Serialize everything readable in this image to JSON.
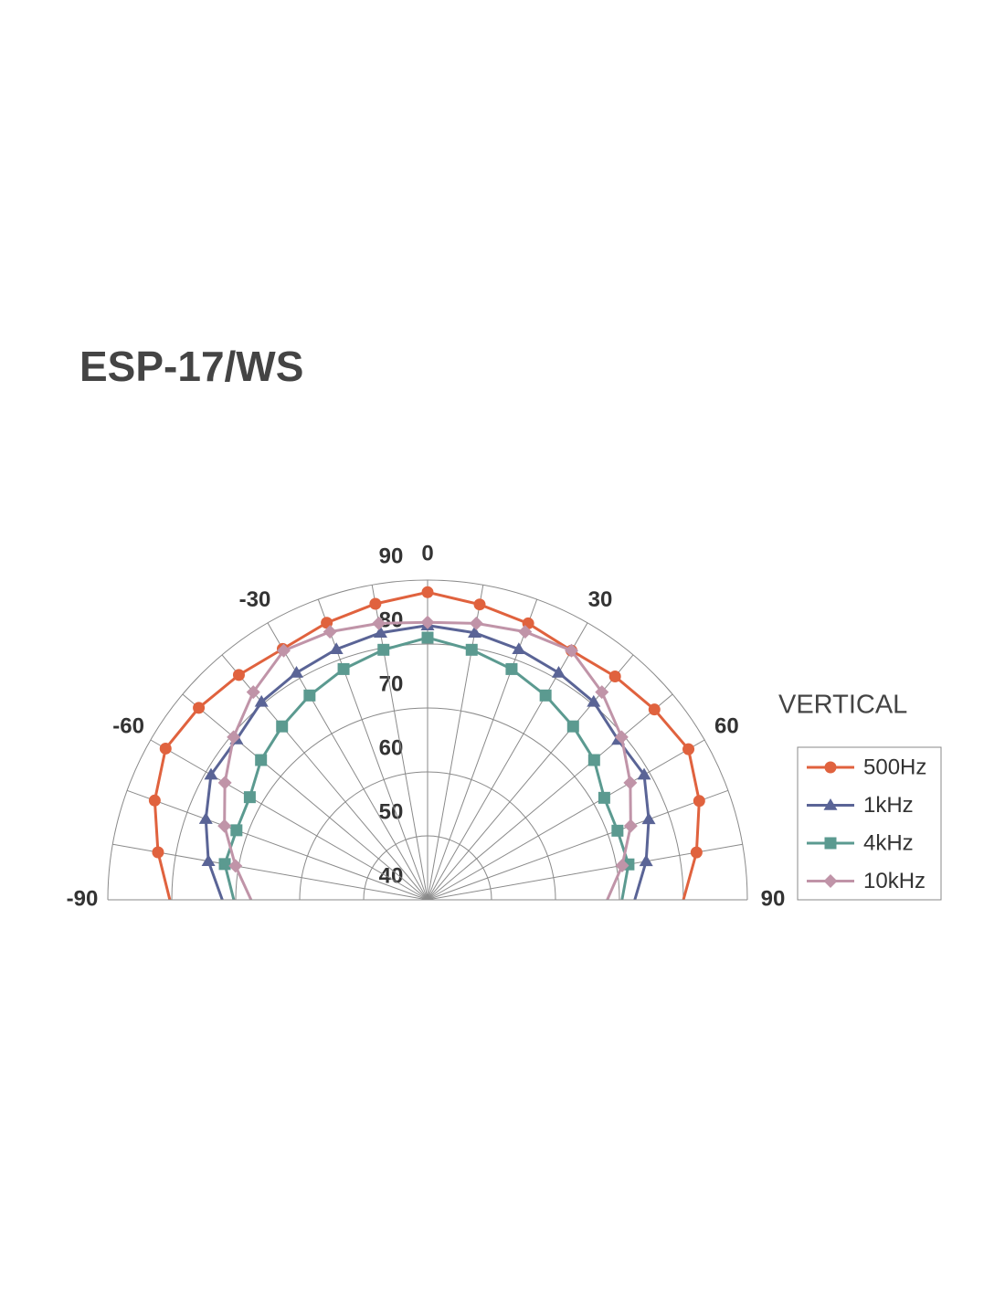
{
  "chart_data": {
    "type": "polar",
    "title": "ESP-17/WS",
    "legend_title": "VERTICAL",
    "theta": [
      -90,
      -80,
      -70,
      -60,
      -50,
      -40,
      -30,
      -20,
      -10,
      0,
      10,
      20,
      30,
      40,
      50,
      60,
      70,
      80,
      90
    ],
    "thetaticks": [
      -90,
      -60,
      -30,
      0,
      30,
      60,
      90
    ],
    "rlim": [
      40,
      90
    ],
    "rticks": [
      40,
      50,
      60,
      70,
      80,
      90
    ],
    "grid": true,
    "series": [
      {
        "name": "500Hz",
        "color": "#e0623e",
        "marker": "circle",
        "values": [
          80.3,
          82.8,
          85.4,
          87.3,
          86.7,
          85.9,
          85.3,
          86.1,
          87.0,
          88.1,
          86.9,
          86.0,
          85.0,
          85.6,
          86.3,
          87.1,
          85.2,
          82.7,
          80.0
        ]
      },
      {
        "name": "1kHz",
        "color": "#5a6496",
        "marker": "triangle",
        "values": [
          72.1,
          74.8,
          76.9,
          79.1,
          79.0,
          80.4,
          81.0,
          81.7,
          82.4,
          82.9,
          82.4,
          81.7,
          81.0,
          80.4,
          78.9,
          79.1,
          76.8,
          74.7,
          72.4
        ]
      },
      {
        "name": "4kHz",
        "color": "#5b9a90",
        "marker": "square",
        "values": [
          70.3,
          72.2,
          71.8,
          72.1,
          74.0,
          75.4,
          76.9,
          78.4,
          79.7,
          81.0,
          79.7,
          78.4,
          76.9,
          75.4,
          74.0,
          71.9,
          71.6,
          71.9,
          70.4
        ]
      },
      {
        "name": "10kHz",
        "color": "#c094a8",
        "marker": "diamond",
        "values": [
          67.6,
          70.5,
          73.8,
          76.6,
          79.6,
          82.4,
          85.0,
          84.6,
          83.9,
          83.4,
          83.9,
          84.6,
          85.0,
          82.4,
          79.6,
          76.6,
          73.8,
          70.9,
          68.1
        ]
      }
    ]
  }
}
